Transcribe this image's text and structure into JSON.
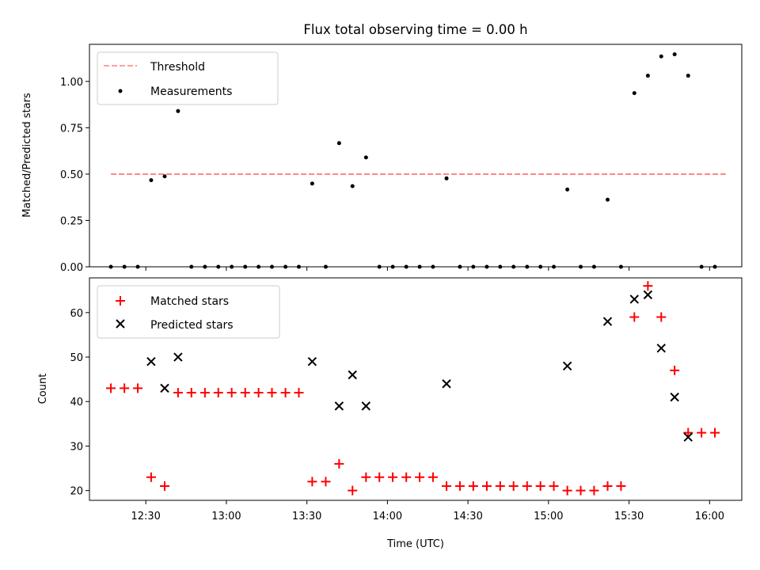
{
  "chart_data": [
    {
      "type": "scatter",
      "title": "Flux total observing time = 0.00 h",
      "xlabel": "",
      "ylabel": "Matched/Predicted stars",
      "ylim": [
        0,
        1.2
      ],
      "yticks": [
        0.0,
        0.25,
        0.5,
        0.75,
        1.0
      ],
      "ytick_labels": [
        "0.00",
        "0.25",
        "0.50",
        "0.75",
        "1.00"
      ],
      "xlim_minutes": [
        12.15,
        16.2
      ],
      "legend_position": "top-left",
      "series": [
        {
          "name": "Threshold",
          "kind": "dashed-line",
          "color": "#ff7f7f",
          "x": [
            12.283,
            16.1
          ],
          "y": [
            0.5,
            0.5
          ]
        },
        {
          "name": "Measurements",
          "kind": "dots",
          "color": "#000000",
          "points": [
            [
              12.283,
              0.0
            ],
            [
              12.367,
              0.0
            ],
            [
              12.45,
              0.0
            ],
            [
              12.533,
              0.467
            ],
            [
              12.617,
              0.488
            ],
            [
              12.7,
              0.84
            ],
            [
              12.783,
              0.0
            ],
            [
              12.867,
              0.0
            ],
            [
              12.95,
              0.0
            ],
            [
              13.033,
              0.0
            ],
            [
              13.117,
              0.0
            ],
            [
              13.2,
              0.0
            ],
            [
              13.283,
              0.0
            ],
            [
              13.367,
              0.0
            ],
            [
              13.45,
              0.0
            ],
            [
              13.533,
              0.449
            ],
            [
              13.617,
              0.0
            ],
            [
              13.7,
              0.667
            ],
            [
              13.783,
              0.435
            ],
            [
              13.867,
              0.59
            ],
            [
              13.95,
              0.0
            ],
            [
              14.033,
              0.0
            ],
            [
              14.117,
              0.0
            ],
            [
              14.2,
              0.0
            ],
            [
              14.283,
              0.0
            ],
            [
              14.367,
              0.477
            ],
            [
              14.45,
              0.0
            ],
            [
              14.533,
              0.0
            ],
            [
              14.617,
              0.0
            ],
            [
              14.7,
              0.0
            ],
            [
              14.783,
              0.0
            ],
            [
              14.867,
              0.0
            ],
            [
              14.95,
              0.0
            ],
            [
              15.033,
              0.0
            ],
            [
              15.117,
              0.417
            ],
            [
              15.2,
              0.0
            ],
            [
              15.283,
              0.0
            ],
            [
              15.367,
              0.362
            ],
            [
              15.45,
              0.0
            ],
            [
              15.533,
              0.937
            ],
            [
              15.617,
              1.031
            ],
            [
              15.7,
              1.135
            ],
            [
              15.783,
              1.146
            ],
            [
              15.867,
              1.031
            ],
            [
              15.95,
              0.0
            ],
            [
              16.033,
              0.0
            ]
          ]
        }
      ]
    },
    {
      "type": "scatter",
      "title": "",
      "xlabel": "Time (UTC)",
      "ylabel": "Count",
      "ylim": [
        17.8,
        67.8
      ],
      "yticks": [
        20,
        30,
        40,
        50,
        60
      ],
      "ytick_labels": [
        "20",
        "30",
        "40",
        "50",
        "60"
      ],
      "xlim_minutes": [
        12.15,
        16.2
      ],
      "xticks": [
        12.5,
        13.0,
        13.5,
        14.0,
        14.5,
        15.0,
        15.5,
        16.0
      ],
      "xtick_labels": [
        "12:30",
        "13:00",
        "13:30",
        "14:00",
        "14:30",
        "15:00",
        "15:30",
        "16:00"
      ],
      "legend_position": "top-left",
      "series": [
        {
          "name": "Matched stars",
          "marker": "plus",
          "color": "#ff0000",
          "points": [
            [
              12.283,
              43
            ],
            [
              12.367,
              43
            ],
            [
              12.45,
              43
            ],
            [
              12.533,
              23
            ],
            [
              12.617,
              21
            ],
            [
              12.7,
              42
            ],
            [
              12.783,
              42
            ],
            [
              12.867,
              42
            ],
            [
              12.95,
              42
            ],
            [
              13.033,
              42
            ],
            [
              13.117,
              42
            ],
            [
              13.2,
              42
            ],
            [
              13.283,
              42
            ],
            [
              13.367,
              42
            ],
            [
              13.45,
              42
            ],
            [
              13.533,
              22
            ],
            [
              13.617,
              22
            ],
            [
              13.7,
              26
            ],
            [
              13.783,
              20
            ],
            [
              13.867,
              23
            ],
            [
              13.95,
              23
            ],
            [
              14.033,
              23
            ],
            [
              14.117,
              23
            ],
            [
              14.2,
              23
            ],
            [
              14.283,
              23
            ],
            [
              14.367,
              21
            ],
            [
              14.45,
              21
            ],
            [
              14.533,
              21
            ],
            [
              14.617,
              21
            ],
            [
              14.7,
              21
            ],
            [
              14.783,
              21
            ],
            [
              14.867,
              21
            ],
            [
              14.95,
              21
            ],
            [
              15.033,
              21
            ],
            [
              15.117,
              20
            ],
            [
              15.2,
              20
            ],
            [
              15.283,
              20
            ],
            [
              15.367,
              21
            ],
            [
              15.45,
              21
            ],
            [
              15.533,
              59
            ],
            [
              15.617,
              66
            ],
            [
              15.7,
              59
            ],
            [
              15.783,
              47
            ],
            [
              15.867,
              33
            ],
            [
              15.95,
              33
            ],
            [
              16.033,
              33
            ]
          ]
        },
        {
          "name": "Predicted stars",
          "marker": "x",
          "color": "#000000",
          "points": [
            [
              12.533,
              49
            ],
            [
              12.617,
              43
            ],
            [
              12.7,
              50
            ],
            [
              13.533,
              49
            ],
            [
              13.7,
              39
            ],
            [
              13.783,
              46
            ],
            [
              13.867,
              39
            ],
            [
              14.367,
              44
            ],
            [
              15.117,
              48
            ],
            [
              15.367,
              58
            ],
            [
              15.533,
              63
            ],
            [
              15.617,
              64
            ],
            [
              15.7,
              52
            ],
            [
              15.783,
              41
            ],
            [
              15.867,
              32
            ]
          ]
        }
      ]
    }
  ]
}
